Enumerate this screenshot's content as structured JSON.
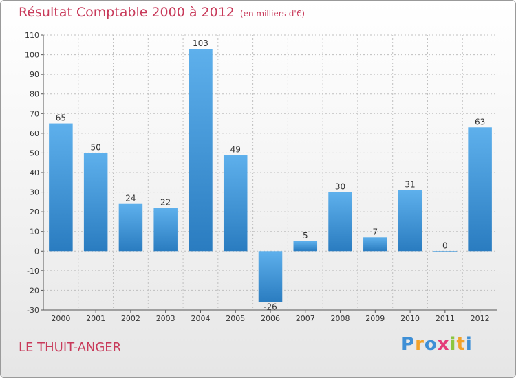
{
  "header": {
    "title": "Résultat Comptable 2000 à 2012",
    "unit": "(en milliers d'€)"
  },
  "footer": {
    "commune": "LE THUIT-ANGER",
    "logo_letters": [
      "P",
      "r",
      "o",
      "x",
      "i",
      "t",
      "i"
    ],
    "logo_colors": [
      "#3e8fd6",
      "#f2a22a",
      "#3e8fd6",
      "#e43a7a",
      "#8cc63f",
      "#f2a22a",
      "#3e8fd6"
    ]
  },
  "colors": {
    "title": "#c83a5a",
    "bar_top": "#5eb0ec",
    "bar_bottom": "#2a7cc0",
    "grid": "#bfbfbf"
  },
  "chart_data": {
    "type": "bar",
    "title": "Résultat Comptable 2000 à 2012",
    "xlabel": "",
    "ylabel": "en milliers d'€",
    "categories": [
      "2000",
      "2001",
      "2002",
      "2003",
      "2004",
      "2005",
      "2006",
      "2007",
      "2008",
      "2009",
      "2010",
      "2011",
      "2012"
    ],
    "values": [
      65,
      50,
      24,
      22,
      103,
      49,
      -26,
      5,
      30,
      7,
      31,
      0,
      63
    ],
    "ylim": [
      -30,
      110
    ],
    "yticks": [
      110,
      100,
      90,
      80,
      70,
      60,
      50,
      40,
      30,
      20,
      10,
      0,
      -10,
      -20,
      -30
    ],
    "grid": true
  }
}
